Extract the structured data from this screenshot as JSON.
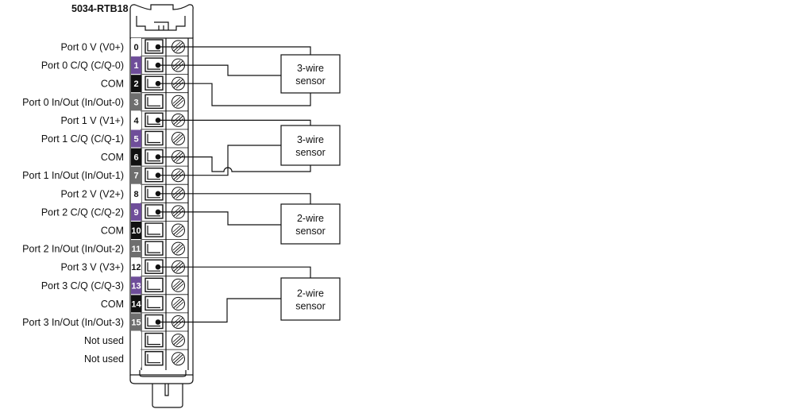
{
  "title": "5034-RTB18",
  "colors": {
    "white": "#ffffff",
    "purple": "#6f4e9a",
    "black": "#111111",
    "gray": "#6e6e6e"
  },
  "terminals": [
    {
      "num": "0",
      "label": "Port 0 V (V0+)",
      "color": "white",
      "wired": true
    },
    {
      "num": "1",
      "label": "Port 0 C/Q (C/Q-0)",
      "color": "purple",
      "wired": true
    },
    {
      "num": "2",
      "label": "COM",
      "color": "black",
      "wired": true
    },
    {
      "num": "3",
      "label": "Port 0 In/Out (In/Out-0)",
      "color": "gray",
      "wired": false
    },
    {
      "num": "4",
      "label": "Port 1 V (V1+)",
      "color": "white",
      "wired": true
    },
    {
      "num": "5",
      "label": "Port 1 C/Q (C/Q-1)",
      "color": "purple",
      "wired": false
    },
    {
      "num": "6",
      "label": "COM",
      "color": "black",
      "wired": true
    },
    {
      "num": "7",
      "label": "Port 1 In/Out (In/Out-1)",
      "color": "gray",
      "wired": true
    },
    {
      "num": "8",
      "label": "Port 2 V (V2+)",
      "color": "white",
      "wired": true
    },
    {
      "num": "9",
      "label": "Port 2 C/Q (C/Q-2)",
      "color": "purple",
      "wired": true
    },
    {
      "num": "10",
      "label": "COM",
      "color": "black",
      "wired": false
    },
    {
      "num": "11",
      "label": "Port 2 In/Out (In/Out-2)",
      "color": "gray",
      "wired": false
    },
    {
      "num": "12",
      "label": "Port 3 V (V3+)",
      "color": "white",
      "wired": true
    },
    {
      "num": "13",
      "label": "Port 3 C/Q (C/Q-3)",
      "color": "purple",
      "wired": false
    },
    {
      "num": "14",
      "label": "COM",
      "color": "black",
      "wired": false
    },
    {
      "num": "15",
      "label": "Port 3 In/Out (In/Out-3)",
      "color": "gray",
      "wired": true
    },
    {
      "num": "",
      "label": "Not used",
      "color": "white",
      "wired": false
    },
    {
      "num": "",
      "label": "Not used",
      "color": "white",
      "wired": false
    }
  ],
  "sensors": [
    {
      "line1": "3-wire",
      "line2": "sensor"
    },
    {
      "line1": "3-wire",
      "line2": "sensor"
    },
    {
      "line1": "2-wire",
      "line2": "sensor"
    },
    {
      "line1": "2-wire",
      "line2": "sensor"
    }
  ]
}
